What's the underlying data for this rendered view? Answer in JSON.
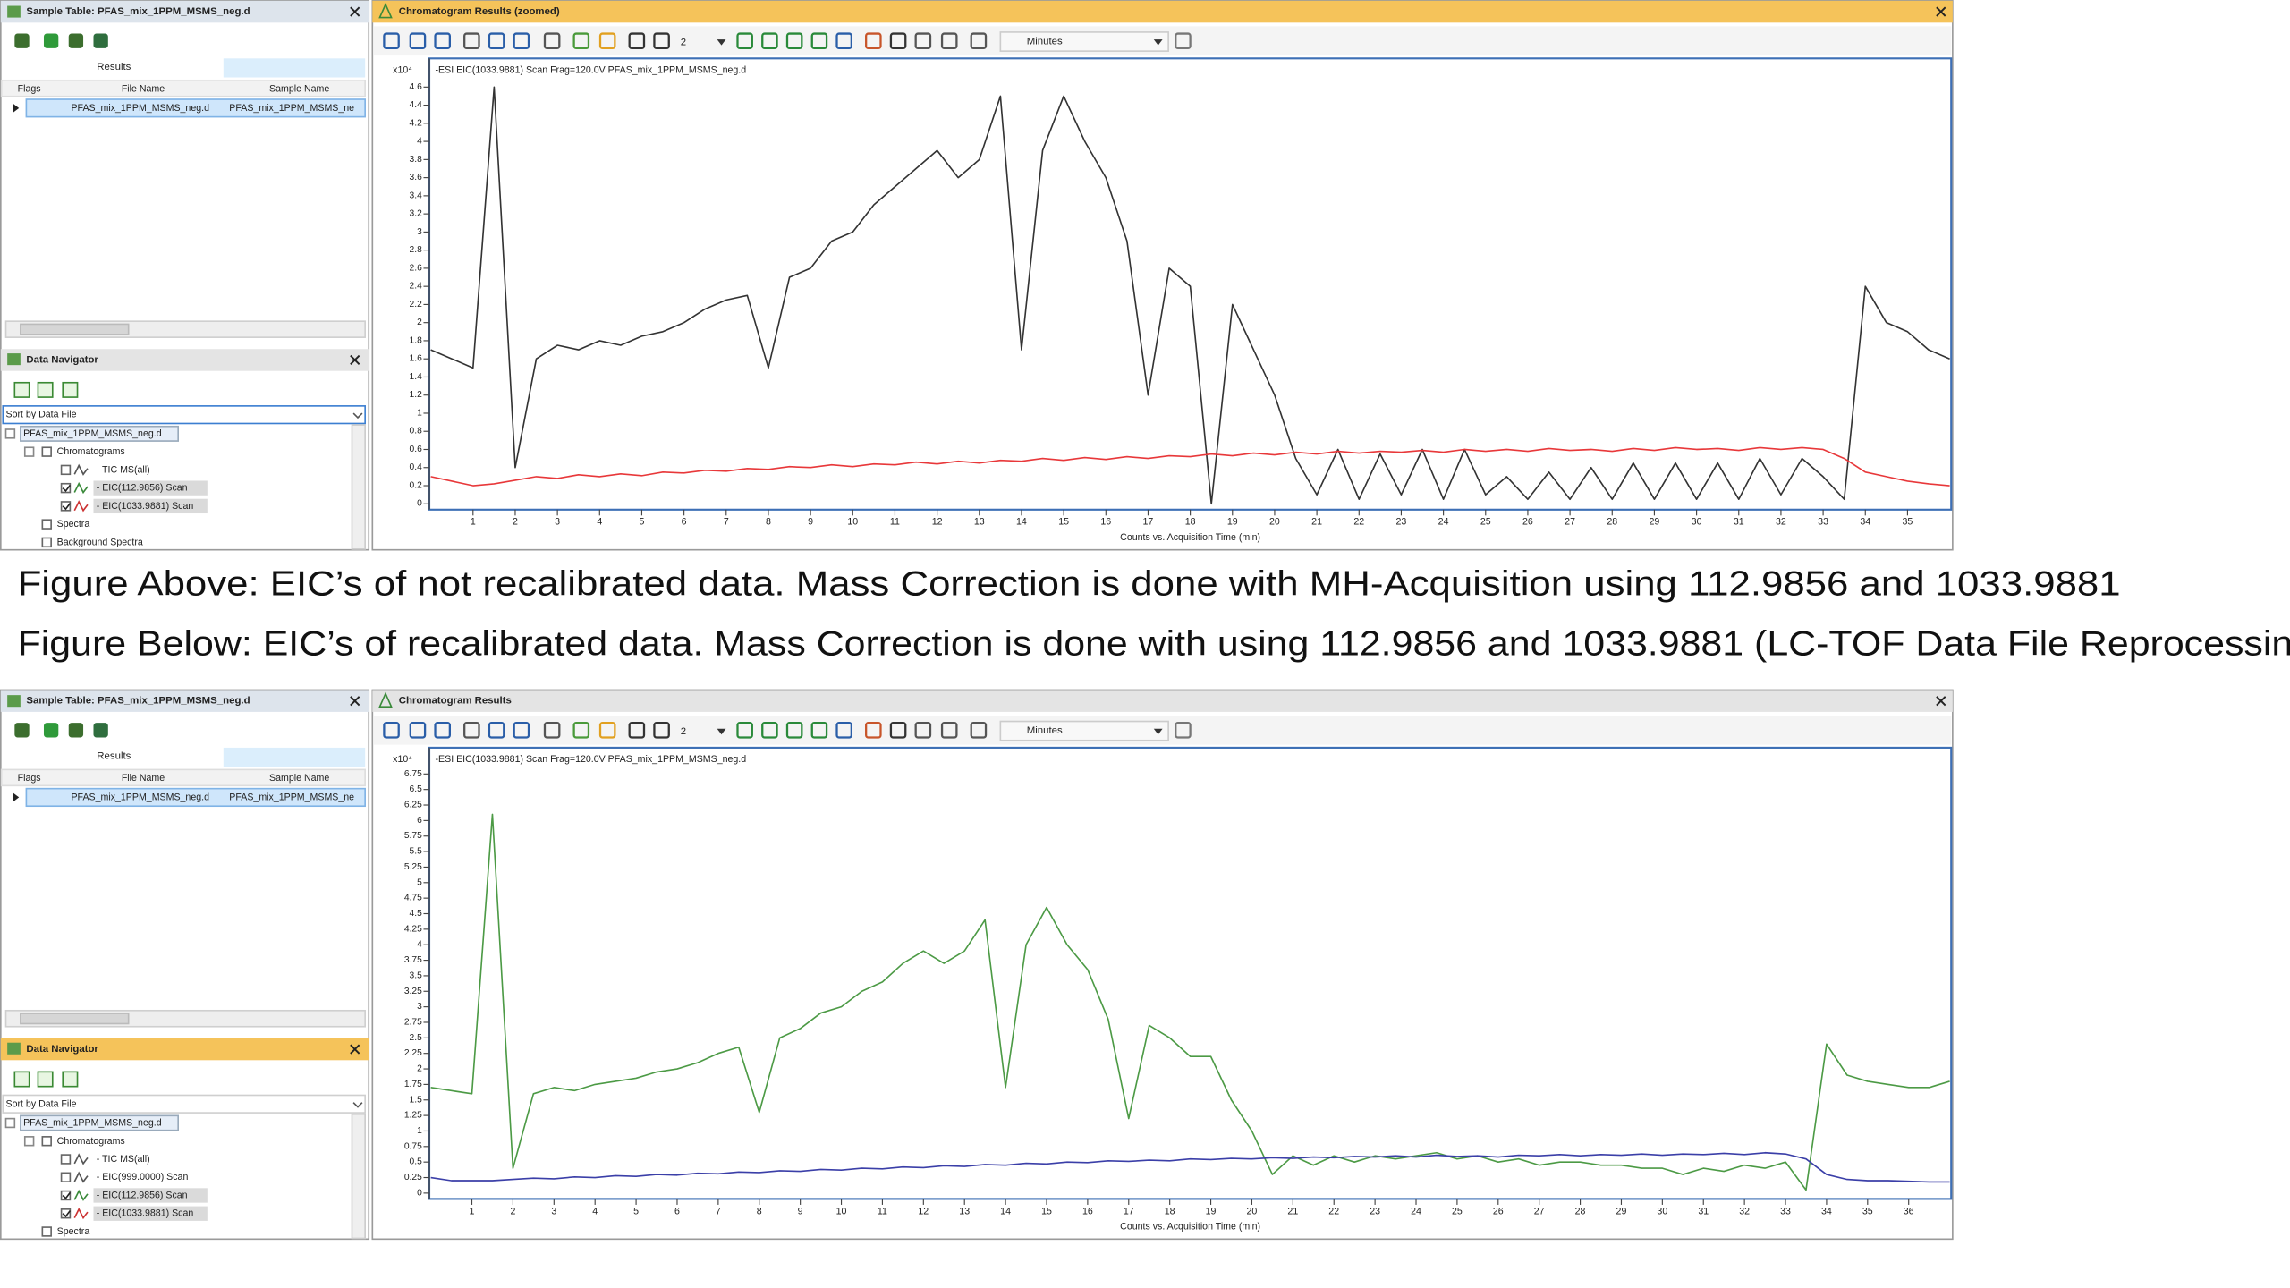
{
  "captions": [
    "Figure Above: EIC’s of not recalibrated data. Mass Correction is done with MH-Acquisition using 112.9856 and 1033.9881",
    "Figure Below: EIC’s of recalibrated data. Mass Correction is done with using 112.9856 and 1033.9881 (LC-TOF Data File Reprocessin"
  ],
  "panels": [
    {
      "sample_table": {
        "title": "Sample Table: PFAS_mix_1PPM_MSMS_neg.d",
        "tab": "Results",
        "columns": [
          "Flags",
          "File Name",
          "Sample Name"
        ],
        "row": [
          "PFAS_mix_1PPM_MSMS_neg.d",
          "PFAS_mix_1PPM_MSMS_ne"
        ]
      },
      "data_navigator": {
        "title": "Data Navigator",
        "sort": "Sort by Data File",
        "file": "PFAS_mix_1PPM_MSMS_neg.d",
        "group": "Chromatograms",
        "items": [
          "- TIC MS(all)",
          "- EIC(112.9856) Scan",
          "- EIC(1033.9881) Scan"
        ],
        "spectra": [
          "Spectra",
          "Background Spectra"
        ]
      },
      "chart_window": {
        "title": "Chromatogram Results (zoomed)",
        "dropdown": "2",
        "units": "Minutes"
      }
    },
    {
      "sample_table": {
        "title": "Sample Table: PFAS_mix_1PPM_MSMS_neg.d",
        "tab": "Results",
        "columns": [
          "Flags",
          "File Name",
          "Sample Name"
        ],
        "row": [
          "PFAS_mix_1PPM_MSMS_neg.d",
          "PFAS_mix_1PPM_MSMS_ne"
        ]
      },
      "data_navigator": {
        "title": "Data Navigator",
        "sort": "Sort by Data File",
        "file": "PFAS_mix_1PPM_MSMS_neg.d",
        "group": "Chromatograms",
        "items": [
          "- TIC MS(all)",
          "- EIC(999.0000) Scan",
          "- EIC(112.9856) Scan",
          "- EIC(1033.9881) Scan"
        ],
        "spectra": [
          "Spectra"
        ]
      },
      "chart_window": {
        "title": "Chromatogram Results",
        "dropdown": "2",
        "units": "Minutes"
      }
    }
  ],
  "chart_data": [
    {
      "type": "line",
      "title": "-ESI EIC(1033.9881) Scan Frag=120.0V PFAS_mix_1PPM_MSMS_neg.d",
      "title_color": "#e8383a",
      "y_unit": "x10⁴",
      "xlabel": "Counts vs. Acquisition Time (min)",
      "x": [
        0,
        0.5,
        1,
        1.5,
        2,
        2.5,
        3,
        3.5,
        4,
        4.5,
        5,
        5.5,
        6,
        6.5,
        7,
        7.5,
        8,
        8.5,
        9,
        9.5,
        10,
        10.5,
        11,
        11.5,
        12,
        12.5,
        13,
        13.5,
        14,
        14.5,
        15,
        15.5,
        16,
        16.5,
        17,
        17.5,
        18,
        18.5,
        19,
        19.5,
        20,
        20.5,
        21,
        21.5,
        22,
        22.5,
        23,
        23.5,
        24,
        24.5,
        25,
        25.5,
        26,
        26.5,
        27,
        27.5,
        28,
        28.5,
        29,
        29.5,
        30,
        30.5,
        31,
        31.5,
        32,
        32.5,
        33,
        33.5,
        34,
        34.5,
        35,
        35.5,
        36
      ],
      "series": [
        {
          "color": "#333333",
          "values": [
            1.7,
            1.6,
            1.5,
            4.6,
            0.4,
            1.6,
            1.75,
            1.7,
            1.8,
            1.75,
            1.85,
            1.9,
            2.0,
            2.15,
            2.25,
            2.3,
            1.5,
            2.5,
            2.6,
            2.9,
            3.0,
            3.3,
            3.5,
            3.7,
            3.9,
            3.6,
            3.8,
            4.5,
            1.7,
            3.9,
            4.5,
            4.0,
            3.6,
            2.9,
            1.2,
            2.6,
            2.4,
            0.0,
            2.2,
            1.7,
            1.2,
            0.5,
            0.1,
            0.6,
            0.05,
            0.55,
            0.1,
            0.6,
            0.05,
            0.6,
            0.1,
            0.3,
            0.05,
            0.35,
            0.05,
            0.4,
            0.05,
            0.45,
            0.05,
            0.45,
            0.05,
            0.45,
            0.05,
            0.5,
            0.1,
            0.5,
            0.3,
            0.05,
            2.4,
            2.0,
            1.9,
            1.7,
            1.6
          ]
        },
        {
          "color": "#e8383a",
          "values": [
            0.3,
            0.25,
            0.2,
            0.22,
            0.26,
            0.3,
            0.28,
            0.32,
            0.3,
            0.33,
            0.31,
            0.35,
            0.34,
            0.37,
            0.36,
            0.39,
            0.38,
            0.41,
            0.4,
            0.43,
            0.41,
            0.44,
            0.43,
            0.46,
            0.44,
            0.47,
            0.45,
            0.48,
            0.47,
            0.5,
            0.48,
            0.51,
            0.49,
            0.52,
            0.5,
            0.53,
            0.52,
            0.55,
            0.53,
            0.56,
            0.54,
            0.57,
            0.55,
            0.58,
            0.56,
            0.58,
            0.57,
            0.59,
            0.57,
            0.6,
            0.58,
            0.6,
            0.58,
            0.61,
            0.59,
            0.6,
            0.58,
            0.61,
            0.59,
            0.62,
            0.6,
            0.61,
            0.59,
            0.62,
            0.6,
            0.62,
            0.6,
            0.5,
            0.35,
            0.3,
            0.25,
            0.22,
            0.2
          ]
        }
      ],
      "xlim": [
        0,
        36
      ],
      "xticks": [
        1,
        2,
        3,
        4,
        5,
        6,
        7,
        8,
        9,
        10,
        11,
        12,
        13,
        14,
        15,
        16,
        17,
        18,
        19,
        20,
        21,
        22,
        23,
        24,
        25,
        26,
        27,
        28,
        29,
        30,
        31,
        32,
        33,
        34,
        35
      ],
      "ylim": [
        0,
        4.9
      ],
      "yticks": [
        0,
        0.2,
        0.4,
        0.6,
        0.8,
        1,
        1.2,
        1.4,
        1.6,
        1.8,
        2,
        2.2,
        2.4,
        2.6,
        2.8,
        3,
        3.2,
        3.4,
        3.6,
        3.8,
        4,
        4.2,
        4.4,
        4.6
      ]
    },
    {
      "type": "line",
      "title": "-ESI EIC(1033.9881) Scan Frag=120.0V PFAS_mix_1PPM_MSMS_neg.d",
      "title_color": "#3b3fa8",
      "y_unit": "x10⁴",
      "xlabel": "Counts vs. Acquisition Time (min)",
      "x": [
        0,
        0.5,
        1,
        1.5,
        2,
        2.5,
        3,
        3.5,
        4,
        4.5,
        5,
        5.5,
        6,
        6.5,
        7,
        7.5,
        8,
        8.5,
        9,
        9.5,
        10,
        10.5,
        11,
        11.5,
        12,
        12.5,
        13,
        13.5,
        14,
        14.5,
        15,
        15.5,
        16,
        16.5,
        17,
        17.5,
        18,
        18.5,
        19,
        19.5,
        20,
        20.5,
        21,
        21.5,
        22,
        22.5,
        23,
        23.5,
        24,
        24.5,
        25,
        25.5,
        26,
        26.5,
        27,
        27.5,
        28,
        28.5,
        29,
        29.5,
        30,
        30.5,
        31,
        31.5,
        32,
        32.5,
        33,
        33.5,
        34,
        34.5,
        35,
        35.5,
        36,
        36.5,
        37
      ],
      "series": [
        {
          "color": "#4c9a45",
          "values": [
            1.7,
            1.65,
            1.6,
            6.1,
            0.4,
            1.6,
            1.7,
            1.65,
            1.75,
            1.8,
            1.85,
            1.95,
            2.0,
            2.1,
            2.25,
            2.35,
            1.3,
            2.5,
            2.65,
            2.9,
            3.0,
            3.25,
            3.4,
            3.7,
            3.9,
            3.7,
            3.9,
            4.4,
            1.7,
            4.0,
            4.6,
            4.0,
            3.6,
            2.8,
            1.2,
            2.7,
            2.5,
            2.2,
            2.2,
            1.5,
            1.0,
            0.3,
            0.6,
            0.45,
            0.6,
            0.5,
            0.6,
            0.55,
            0.6,
            0.65,
            0.55,
            0.6,
            0.5,
            0.55,
            0.45,
            0.5,
            0.5,
            0.45,
            0.45,
            0.4,
            0.4,
            0.3,
            0.4,
            0.35,
            0.45,
            0.4,
            0.5,
            0.05,
            2.4,
            1.9,
            1.8,
            1.75,
            1.7,
            1.7,
            1.8
          ]
        },
        {
          "color": "#3b3fa8",
          "values": [
            0.25,
            0.2,
            0.2,
            0.2,
            0.22,
            0.24,
            0.23,
            0.26,
            0.25,
            0.28,
            0.27,
            0.3,
            0.29,
            0.32,
            0.31,
            0.34,
            0.33,
            0.36,
            0.35,
            0.38,
            0.37,
            0.4,
            0.39,
            0.42,
            0.41,
            0.44,
            0.43,
            0.46,
            0.45,
            0.48,
            0.47,
            0.5,
            0.49,
            0.52,
            0.51,
            0.53,
            0.52,
            0.55,
            0.54,
            0.56,
            0.55,
            0.57,
            0.56,
            0.58,
            0.57,
            0.59,
            0.58,
            0.6,
            0.58,
            0.61,
            0.59,
            0.6,
            0.58,
            0.61,
            0.6,
            0.62,
            0.6,
            0.62,
            0.61,
            0.63,
            0.61,
            0.63,
            0.62,
            0.64,
            0.62,
            0.65,
            0.63,
            0.55,
            0.3,
            0.22,
            0.2,
            0.2,
            0.19,
            0.18,
            0.18
          ]
        }
      ],
      "xlim": [
        0,
        37
      ],
      "xticks": [
        1,
        2,
        3,
        4,
        5,
        6,
        7,
        8,
        9,
        10,
        11,
        12,
        13,
        14,
        15,
        16,
        17,
        18,
        19,
        20,
        21,
        22,
        23,
        24,
        25,
        26,
        27,
        28,
        29,
        30,
        31,
        32,
        33,
        34,
        35,
        36
      ],
      "ylim": [
        0,
        7.15
      ],
      "yticks": [
        0,
        0.25,
        0.5,
        0.75,
        1,
        1.25,
        1.5,
        1.75,
        2,
        2.25,
        2.5,
        2.75,
        3,
        3.25,
        3.5,
        3.75,
        4,
        4.25,
        4.5,
        4.75,
        5,
        5.25,
        5.5,
        5.75,
        6,
        6.25,
        6.5,
        6.75
      ]
    }
  ]
}
